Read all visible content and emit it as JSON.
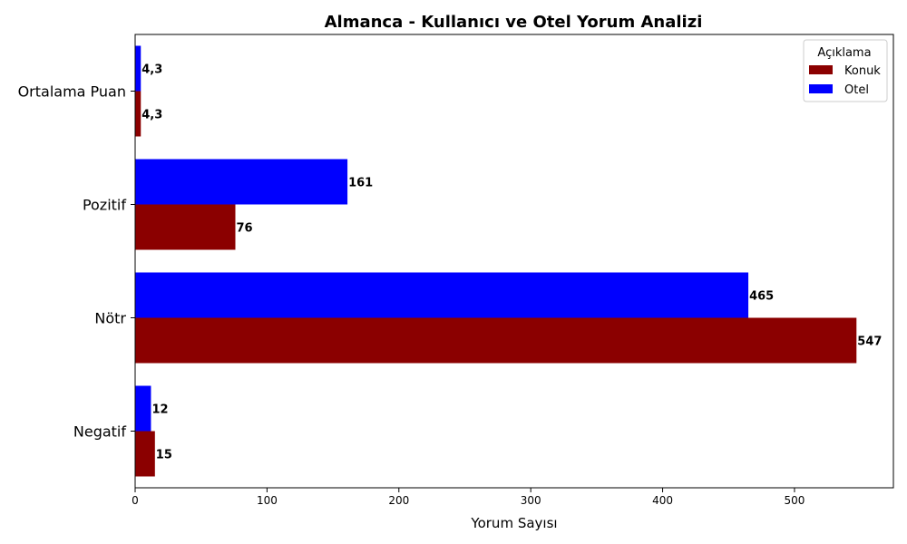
{
  "chart_data": {
    "type": "bar",
    "orientation": "horizontal",
    "title": "Almanca - Kullanıcı ve Otel Yorum Analizi",
    "xlabel": "Yorum Sayısı",
    "ylabel": "",
    "xlim": [
      0,
      575
    ],
    "xticks": [
      0,
      100,
      200,
      300,
      400,
      500
    ],
    "categories": [
      "Negatif",
      "Nötr",
      "Pozitif",
      "Ortalama Puan"
    ],
    "series": [
      {
        "name": "Konuk",
        "color": "#8b0000",
        "values": [
          15,
          547,
          76,
          4.3
        ],
        "labels": [
          "15",
          "547",
          "76",
          "4,3"
        ]
      },
      {
        "name": "Otel",
        "color": "#0000ff",
        "values": [
          12,
          465,
          161,
          4.3
        ],
        "labels": [
          "12",
          "465",
          "161",
          "4,3"
        ]
      }
    ],
    "legend": {
      "title": "Açıklama",
      "position": "top-right"
    },
    "grid": false
  }
}
